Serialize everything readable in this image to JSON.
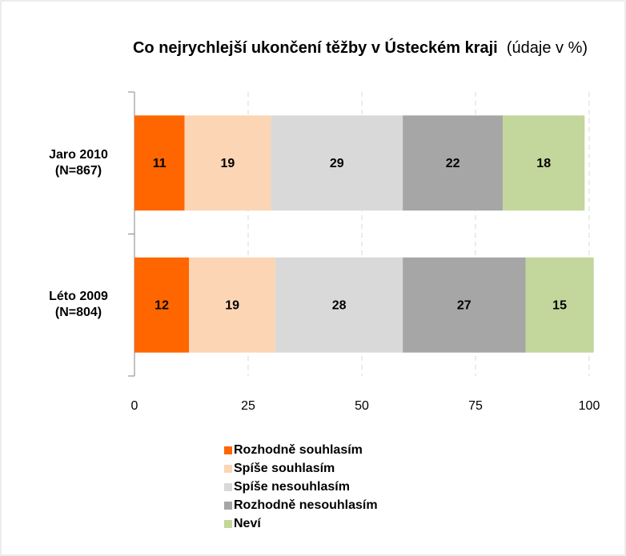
{
  "chart_data": {
    "type": "stacked-barh",
    "title": "Co nejrychlejší  ukončení těžby v Ústeckém kraji",
    "subtitle": "(údaje v %)",
    "categories": [
      "Jaro 2010 (N=867)",
      "Léto 2009 (N=804)"
    ],
    "series": [
      {
        "name": "Rozhodně souhlasím",
        "color": "#ff6600",
        "values": [
          11,
          12
        ]
      },
      {
        "name": "Spíše souhlasím",
        "color": "#fcd5b5",
        "values": [
          19,
          19
        ]
      },
      {
        "name": "Spíše nesouhlasím",
        "color": "#d9d9d9",
        "values": [
          29,
          28
        ]
      },
      {
        "name": "Rozhodně nesouhlasím",
        "color": "#a6a6a6",
        "values": [
          22,
          27
        ]
      },
      {
        "name": "Neví",
        "color": "#c3d69b",
        "values": [
          18,
          15
        ]
      }
    ],
    "xlim": [
      0,
      100
    ],
    "xticks": [
      0,
      25,
      50,
      75,
      100
    ],
    "grid": true,
    "legend": "bottom"
  }
}
